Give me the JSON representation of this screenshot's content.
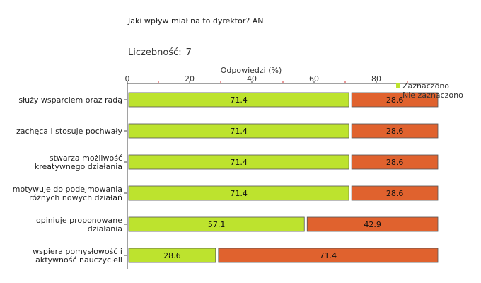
{
  "question": "Jaki wpływ miał na to dyrektor? AN",
  "count": {
    "label": "Liczebność:",
    "value": "7"
  },
  "chart_data": {
    "type": "bar",
    "orientation": "horizontal",
    "stacked": true,
    "xlabel": "Odpowiedzi (%)",
    "xlim": [
      0,
      100
    ],
    "ticks": [
      0,
      20,
      40,
      60,
      80
    ],
    "grid": false,
    "legend_position": "top-right",
    "categories": [
      [
        "służy wsparciem oraz radą"
      ],
      [
        "zachęca i stosuje pochwały"
      ],
      [
        "stwarza możliwość",
        "kreatywnego działania"
      ],
      [
        "motywuje do podejmowania",
        "różnych nowych działań"
      ],
      [
        "opiniuje proponowane",
        "działania"
      ],
      [
        "wspiera pomysłowość i",
        "aktywność nauczycieli"
      ]
    ],
    "series": [
      {
        "name": "Zaznaczono",
        "color": "#bde32e",
        "values": [
          71.4,
          71.4,
          71.4,
          71.4,
          57.1,
          28.6
        ]
      },
      {
        "name": "Nie zaznaczono",
        "color": "#e0622e",
        "values": [
          28.6,
          28.6,
          28.6,
          28.6,
          42.9,
          71.4
        ]
      }
    ]
  }
}
